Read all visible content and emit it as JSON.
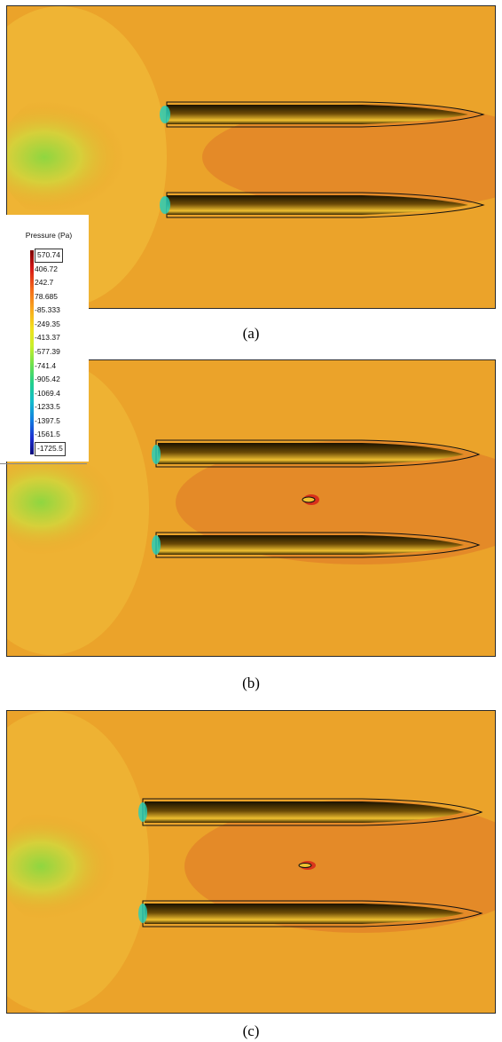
{
  "figure": {
    "panels": [
      {
        "id": "a",
        "caption": "(a)",
        "obstacle": false
      },
      {
        "id": "b",
        "caption": "(b)",
        "obstacle": true
      },
      {
        "id": "c",
        "caption": "(c)",
        "obstacle": true
      }
    ],
    "legend": {
      "title": "Pressure (Pa)",
      "ticks": [
        "570.74",
        "406.72",
        "242.7",
        "78.685",
        "-85.333",
        "-249.35",
        "-413.37",
        "-577.39",
        "-741.4",
        "-905.42",
        "-1069.4",
        "-1233.5",
        "-1397.5",
        "-1561.5",
        "-1725.5"
      ]
    },
    "colors": {
      "field_base": "#eba32a",
      "field_light": "#f2c23c",
      "field_wake": "#e08a2a",
      "low_pressure": "#8fd640",
      "hull_dark": "#1a1200",
      "hull_bright": "#f0c030"
    }
  }
}
